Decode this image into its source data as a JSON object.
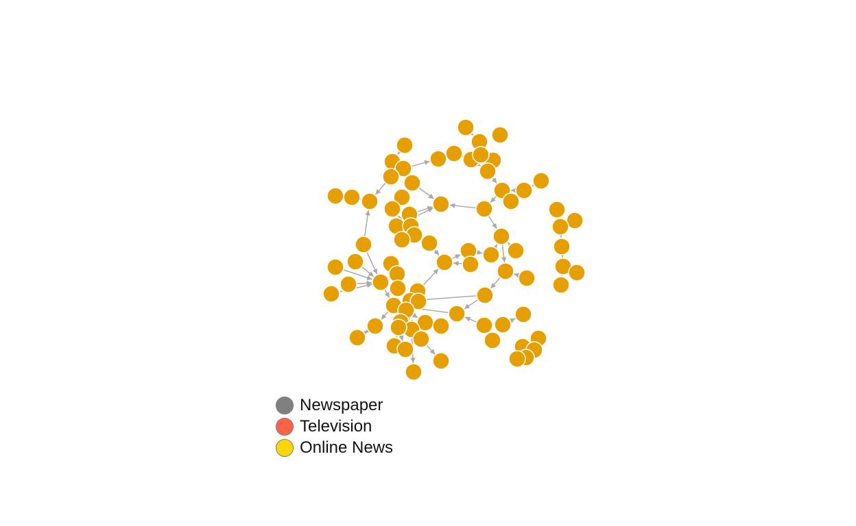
{
  "colors": {
    "node_fill": "#E69F00",
    "node_stroke": "#ffffff",
    "edge": "#a9a9a9"
  },
  "legend": {
    "items": [
      {
        "label": "Newspaper",
        "color": "#808080"
      },
      {
        "label": "Television",
        "color": "#FF6347"
      },
      {
        "label": "Online News",
        "color": "#FFD700"
      }
    ]
  }
}
